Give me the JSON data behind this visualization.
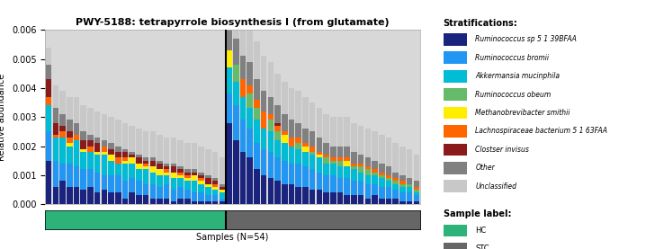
{
  "title": "PWY-5188: tetrapyrrole biosynthesis I (from glutamate)",
  "xlabel": "Samples (N=54)",
  "ylabel": "Relative abundance",
  "ylim": [
    0.0,
    0.006
  ],
  "yticks": [
    0.0,
    0.001,
    0.002,
    0.003,
    0.004,
    0.005,
    0.006
  ],
  "n_hc": 26,
  "n_stc": 28,
  "stratifications": [
    "Ruminococcus sp 5 1 39BFAA",
    "Ruminococcus bromii",
    "Akkermansia mucinphila",
    "Ruminococcus obeum",
    "Methanobrevibacter smithii",
    "Lachnospiraceae bacterium 5 1 63FAA",
    "Clostser invisus",
    "Other",
    "Unclassified"
  ],
  "colors": [
    "#1a237e",
    "#2196f3",
    "#00bcd4",
    "#66bb6a",
    "#ffee00",
    "#ff6600",
    "#8b1a1a",
    "#808080",
    "#c8c8c8"
  ],
  "sample_label_colors": [
    "#2db37a",
    "#666666"
  ],
  "sample_labels": [
    "HC",
    "STC"
  ],
  "hc_data": [
    [
      0.0015,
      0.001,
      0.0009,
      0.0,
      0.0,
      0.0003,
      0.0006,
      0.0005,
      0.0006
    ],
    [
      0.0008,
      0.0006,
      0.0009,
      0.0,
      0.0,
      0.0002,
      0.0002,
      0.0004,
      0.0008
    ],
    [
      0.0006,
      0.0009,
      0.0008,
      0.0,
      0.0,
      0.0001,
      0.0004,
      0.0005,
      0.0008
    ],
    [
      0.0006,
      0.0007,
      0.0009,
      0.0,
      0.0,
      0.0002,
      0.0,
      0.0004,
      0.0009
    ],
    [
      0.0006,
      0.0008,
      0.0006,
      0.0,
      0.0001,
      0.0002,
      0.0002,
      0.0004,
      0.0008
    ],
    [
      0.0005,
      0.0007,
      0.0006,
      0.0,
      0.0001,
      0.0,
      0.0003,
      0.0003,
      0.0009
    ],
    [
      0.0006,
      0.0006,
      0.0006,
      0.0,
      0.0,
      0.0002,
      0.0002,
      0.0002,
      0.0009
    ],
    [
      0.0004,
      0.0007,
      0.0006,
      0.0,
      0.0001,
      0.0,
      0.0003,
      0.0002,
      0.0009
    ],
    [
      0.0005,
      0.0005,
      0.0007,
      0.0,
      0.0001,
      0.0002,
      0.0,
      0.0002,
      0.0009
    ],
    [
      0.0004,
      0.0006,
      0.0005,
      0.0,
      0.0002,
      0.0,
      0.0002,
      0.0002,
      0.0009
    ],
    [
      0.0004,
      0.0006,
      0.0004,
      0.0,
      0.0,
      0.0002,
      0.0002,
      0.0002,
      0.0009
    ],
    [
      0.0004,
      0.0005,
      0.0005,
      0.0,
      0.0002,
      0.0,
      0.0001,
      0.0001,
      0.0009
    ],
    [
      0.0002,
      0.0006,
      0.0006,
      0.0,
      0.0001,
      0.0001,
      0.0002,
      0.0001,
      0.0009
    ],
    [
      0.0003,
      0.0005,
      0.0004,
      0.0,
      0.0002,
      0.0,
      0.0002,
      0.0001,
      0.0009
    ],
    [
      0.0003,
      0.0004,
      0.0005,
      0.0,
      0.0001,
      0.0001,
      0.0001,
      0.0001,
      0.0009
    ],
    [
      0.0002,
      0.0005,
      0.0004,
      0.0,
      0.0002,
      0.0,
      0.0002,
      0.0001,
      0.0009
    ],
    [
      0.0002,
      0.0005,
      0.0003,
      0.0,
      0.0001,
      0.0001,
      0.0001,
      0.0001,
      0.0009
    ],
    [
      0.0002,
      0.0004,
      0.0004,
      0.0,
      0.0002,
      0.0,
      0.0002,
      0.0001,
      0.0009
    ],
    [
      0.0002,
      0.0004,
      0.0003,
      0.0,
      0.0001,
      0.0001,
      0.0001,
      0.0001,
      0.0009
    ],
    [
      0.0001,
      0.0004,
      0.0004,
      0.0,
      0.0002,
      0.0,
      0.0002,
      0.0001,
      0.0009
    ],
    [
      0.0002,
      0.0003,
      0.0003,
      0.0,
      0.0001,
      0.0001,
      0.0001,
      0.0001,
      0.0009
    ],
    [
      0.0001,
      0.0003,
      0.0004,
      0.0,
      0.0002,
      0.0,
      0.0001,
      0.0001,
      0.0009
    ],
    [
      0.0001,
      0.0003,
      0.0003,
      0.0,
      0.0001,
      0.0001,
      0.0001,
      0.0001,
      0.0009
    ],
    [
      0.0001,
      0.0002,
      0.0003,
      0.0,
      0.0001,
      0.0,
      0.0002,
      0.0001,
      0.0009
    ],
    [
      0.0001,
      0.0002,
      0.0002,
      0.0,
      0.0001,
      0.0001,
      0.0001,
      0.0001,
      0.0009
    ],
    [
      0.0001,
      0.0001,
      0.0002,
      0.0,
      0.0001,
      0.0,
      0.0001,
      0.0001,
      0.0009
    ]
  ],
  "stc_data": [
    [
      0.0028,
      0.001,
      0.0009,
      0.0,
      0.0006,
      0.0,
      0.0,
      0.001,
      0.0015
    ],
    [
      0.0022,
      0.0012,
      0.0008,
      0.0006,
      0.0,
      0.0,
      0.0,
      0.0009,
      0.0015
    ],
    [
      0.0018,
      0.0011,
      0.0008,
      0.0,
      0.0,
      0.0006,
      0.0,
      0.0008,
      0.0014
    ],
    [
      0.0016,
      0.001,
      0.0007,
      0.0005,
      0.0,
      0.0003,
      0.0,
      0.0008,
      0.0013
    ],
    [
      0.0012,
      0.0009,
      0.0008,
      0.0004,
      0.0,
      0.0003,
      0.0,
      0.0007,
      0.0013
    ],
    [
      0.001,
      0.0009,
      0.0007,
      0.0,
      0.0,
      0.0006,
      0.0,
      0.0007,
      0.0012
    ],
    [
      0.0009,
      0.0009,
      0.0007,
      0.0004,
      0.0,
      0.0002,
      0.0,
      0.0006,
      0.0012
    ],
    [
      0.0008,
      0.0008,
      0.0006,
      0.0003,
      0.0,
      0.0002,
      0.0001,
      0.0006,
      0.0011
    ],
    [
      0.0007,
      0.0008,
      0.0006,
      0.0,
      0.0003,
      0.0001,
      0.0,
      0.0006,
      0.0011
    ],
    [
      0.0007,
      0.0007,
      0.0006,
      0.0,
      0.0,
      0.0003,
      0.0,
      0.0006,
      0.0011
    ],
    [
      0.0006,
      0.0008,
      0.0005,
      0.0002,
      0.0,
      0.0002,
      0.0,
      0.0005,
      0.0011
    ],
    [
      0.0006,
      0.0007,
      0.0005,
      0.0,
      0.0002,
      0.0001,
      0.0,
      0.0005,
      0.0011
    ],
    [
      0.0005,
      0.0007,
      0.0005,
      0.0001,
      0.0,
      0.0002,
      0.0,
      0.0005,
      0.001
    ],
    [
      0.0005,
      0.0006,
      0.0005,
      0.0,
      0.0001,
      0.0001,
      0.0,
      0.0005,
      0.001
    ],
    [
      0.0004,
      0.0006,
      0.0004,
      0.0002,
      0.0,
      0.0001,
      0.0,
      0.0004,
      0.001
    ],
    [
      0.0004,
      0.0006,
      0.0004,
      0.0001,
      0.0,
      0.0001,
      0.0,
      0.0004,
      0.001
    ],
    [
      0.0004,
      0.0005,
      0.0004,
      0.0002,
      0.0,
      0.0001,
      0.0,
      0.0004,
      0.001
    ],
    [
      0.0003,
      0.0006,
      0.0004,
      0.0,
      0.0002,
      0.0001,
      0.0,
      0.0004,
      0.001
    ],
    [
      0.0003,
      0.0005,
      0.0004,
      0.0001,
      0.0,
      0.0001,
      0.0,
      0.0004,
      0.001
    ],
    [
      0.0003,
      0.0005,
      0.0003,
      0.0002,
      0.0,
      0.0001,
      0.0,
      0.0003,
      0.001
    ],
    [
      0.0003,
      0.0004,
      0.0003,
      0.0001,
      0.0,
      0.0001,
      0.0,
      0.0003,
      0.001
    ],
    [
      0.0002,
      0.0005,
      0.0003,
      0.0002,
      0.0,
      0.0001,
      0.0,
      0.0003,
      0.001
    ],
    [
      0.0002,
      0.0004,
      0.0003,
      0.0001,
      0.0,
      0.0001,
      0.0,
      0.0003,
      0.001
    ],
    [
      0.0002,
      0.0004,
      0.0002,
      0.0001,
      0.0,
      0.0001,
      0.0,
      0.0003,
      0.001
    ],
    [
      0.0002,
      0.0003,
      0.0002,
      0.0001,
      0.0,
      0.0001,
      0.0,
      0.0002,
      0.001
    ],
    [
      0.0001,
      0.0003,
      0.0002,
      0.0001,
      0.0,
      0.0001,
      0.0,
      0.0002,
      0.001
    ],
    [
      0.0001,
      0.0003,
      0.0002,
      0.0001,
      0.0,
      0.0,
      0.0,
      0.0002,
      0.001
    ],
    [
      0.0001,
      0.0002,
      0.0001,
      0.0001,
      0.0,
      0.0001,
      0.0,
      0.0002,
      0.0009
    ]
  ]
}
